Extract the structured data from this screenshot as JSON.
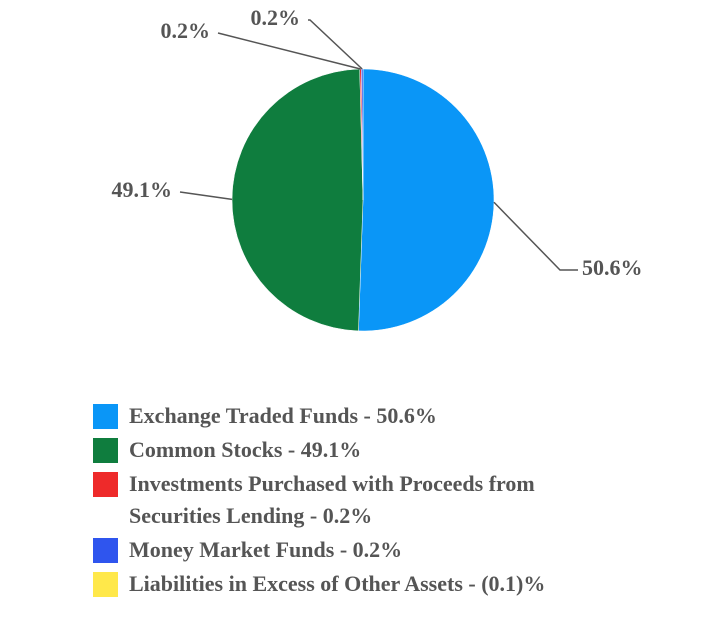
{
  "chart_data": {
    "type": "pie",
    "series": [
      {
        "name": "Exchange Traded Funds - 50.6%",
        "color": "#0a96f7",
        "values": [
          50.6
        ],
        "value_labels": [
          "50.6%"
        ]
      },
      {
        "name": "Common Stocks - 49.1%",
        "color": "#0f7d3e",
        "values": [
          49.1
        ],
        "value_labels": [
          "49.1%"
        ]
      },
      {
        "name": "Investments Purchased with Proceeds from Securities Lending - 0.2%",
        "color": "#ee2a2a",
        "values": [
          0.2
        ],
        "value_labels": [
          "0.2%"
        ]
      },
      {
        "name": "Money Market Funds - 0.2%",
        "color": "#2f55ee",
        "values": [
          0.2
        ],
        "value_labels": [
          "0.2%"
        ]
      },
      {
        "name": "Liabilities in Excess of Other Assets - (0.1)%",
        "color": "#ffe84a",
        "values": [
          -0.1
        ]
      }
    ]
  }
}
